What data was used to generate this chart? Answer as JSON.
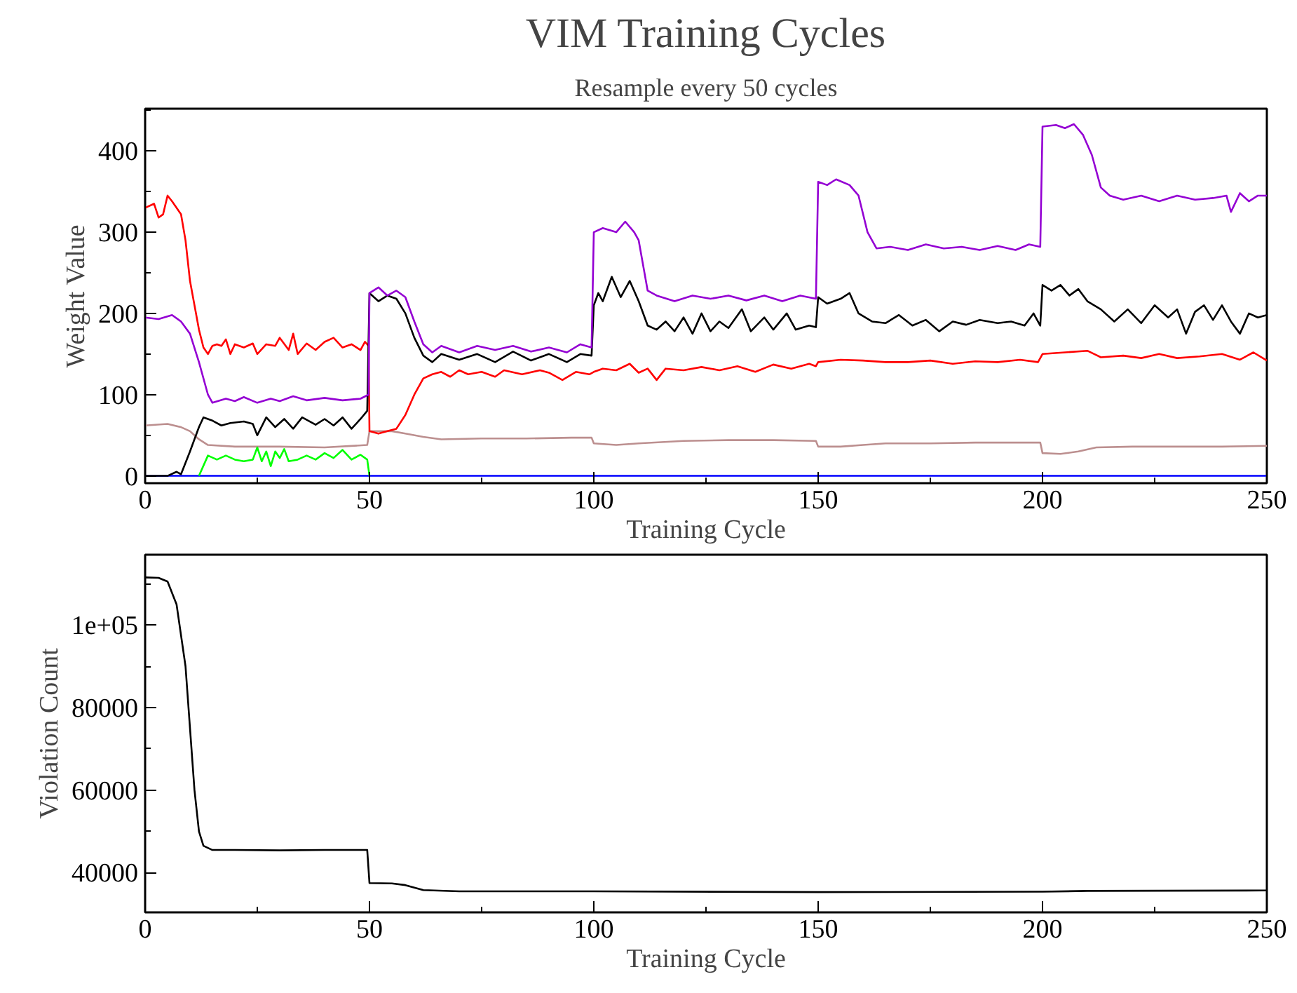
{
  "chart_data": [
    {
      "type": "line",
      "title": "VIM Training Cycles",
      "subtitle": "Resample every 50 cycles",
      "xlabel": "Training Cycle",
      "ylabel": "Weight Value",
      "xlim": [
        0,
        250
      ],
      "ylim": [
        -9,
        452
      ],
      "xticks": [
        0,
        {
          "value": 25,
          "label": null
        },
        50,
        {
          "value": 75,
          "label": null
        },
        100,
        {
          "value": 125,
          "label": null
        },
        150,
        {
          "value": 175,
          "label": null
        },
        200,
        {
          "value": 225,
          "label": null
        },
        250
      ],
      "yticks": [
        0,
        {
          "value": 50,
          "label": null
        },
        100,
        {
          "value": 150,
          "label": null
        },
        200,
        {
          "value": 250,
          "label": null
        },
        300,
        {
          "value": 350,
          "label": null
        },
        400,
        {
          "value": 450,
          "label": null
        }
      ],
      "series": [
        {
          "color": "#0000ff",
          "x": [
            0,
            250
          ],
          "values": [
            0,
            0
          ]
        },
        {
          "color": "#bc8f8f",
          "x": [
            0,
            5,
            8,
            10,
            12,
            14,
            20,
            30,
            40,
            49.5,
            50,
            55,
            58,
            62,
            66,
            75,
            85,
            95,
            99.5,
            100,
            105,
            110,
            120,
            130,
            140,
            149.5,
            150,
            155,
            160,
            165,
            175,
            185,
            199.5,
            200,
            204,
            208,
            212,
            220,
            230,
            240,
            250
          ],
          "values": [
            62,
            64,
            60,
            55,
            45,
            38,
            36,
            36,
            35,
            38,
            55,
            55,
            52,
            48,
            45,
            46,
            46,
            47,
            47,
            40,
            38,
            40,
            43,
            44,
            44,
            43,
            36,
            36,
            38,
            40,
            40,
            41,
            41,
            28,
            27,
            30,
            35,
            36,
            36,
            36,
            37
          ]
        },
        {
          "color": "#00ff00",
          "x": [
            12,
            14,
            16,
            18,
            20,
            22,
            24,
            25,
            26,
            27,
            28,
            29,
            30,
            31,
            32,
            34,
            36,
            38,
            40,
            42,
            44,
            46,
            48,
            49.5,
            50
          ],
          "values": [
            0,
            25,
            20,
            25,
            20,
            18,
            20,
            35,
            18,
            30,
            12,
            30,
            22,
            33,
            18,
            20,
            25,
            20,
            28,
            22,
            32,
            20,
            26,
            20,
            0
          ]
        },
        {
          "color": "#ff0000",
          "x": [
            0,
            2,
            3,
            4,
            5,
            6,
            7,
            8,
            9,
            10,
            11,
            12,
            13,
            14,
            15,
            16,
            17,
            18,
            19,
            20,
            22,
            24,
            25,
            27,
            29,
            30,
            32,
            33,
            34,
            36,
            38,
            40,
            42,
            44,
            46,
            48,
            49,
            49.8,
            50,
            52,
            54,
            56,
            58,
            60,
            62,
            64,
            66,
            68,
            70,
            72,
            75,
            78,
            80,
            84,
            88,
            90,
            93,
            96,
            99,
            100,
            102,
            105,
            108,
            110,
            112,
            114,
            116,
            120,
            124,
            128,
            132,
            136,
            140,
            144,
            148,
            149.5,
            150,
            155,
            160,
            165,
            170,
            175,
            180,
            185,
            190,
            195,
            199,
            200,
            205,
            210,
            213,
            218,
            222,
            226,
            230,
            235,
            240,
            244,
            247,
            250
          ],
          "values": [
            330,
            335,
            318,
            322,
            345,
            338,
            330,
            322,
            290,
            240,
            210,
            180,
            158,
            150,
            160,
            162,
            160,
            168,
            150,
            162,
            158,
            163,
            150,
            162,
            160,
            170,
            155,
            175,
            150,
            163,
            155,
            165,
            170,
            158,
            162,
            155,
            165,
            160,
            55,
            52,
            55,
            58,
            75,
            100,
            120,
            125,
            128,
            122,
            130,
            125,
            128,
            122,
            130,
            125,
            130,
            127,
            118,
            128,
            125,
            128,
            132,
            130,
            138,
            127,
            132,
            118,
            132,
            130,
            134,
            130,
            135,
            128,
            137,
            132,
            138,
            135,
            140,
            143,
            142,
            140,
            140,
            142,
            138,
            141,
            140,
            143,
            140,
            150,
            152,
            154,
            146,
            148,
            145,
            150,
            145,
            147,
            150,
            143,
            152,
            142
          ]
        },
        {
          "color": "#000000",
          "x": [
            0,
            5,
            7,
            8,
            10,
            12,
            13,
            15,
            17,
            19,
            22,
            24,
            25,
            27,
            29,
            31,
            33,
            35,
            38,
            40,
            42,
            44,
            46,
            48,
            49.5,
            50,
            52,
            54,
            56,
            58,
            60,
            62,
            64,
            66,
            70,
            74,
            78,
            82,
            86,
            90,
            94,
            97,
            99.5,
            100,
            101,
            102,
            104,
            106,
            108,
            110,
            112,
            114,
            116,
            118,
            120,
            122,
            124,
            126,
            128,
            130,
            133,
            135,
            138,
            140,
            143,
            145,
            148,
            149.5,
            150,
            152,
            155,
            157,
            159,
            162,
            165,
            168,
            171,
            174,
            177,
            180,
            183,
            186,
            190,
            193,
            196,
            198,
            199.5,
            200,
            202,
            204,
            206,
            208,
            210,
            213,
            216,
            219,
            222,
            225,
            228,
            230,
            232,
            234,
            236,
            238,
            240,
            242,
            244,
            246,
            248,
            250
          ],
          "values": [
            0,
            0,
            5,
            2,
            30,
            60,
            72,
            68,
            62,
            65,
            67,
            64,
            50,
            72,
            60,
            70,
            58,
            72,
            63,
            70,
            62,
            72,
            58,
            70,
            80,
            225,
            215,
            222,
            218,
            200,
            170,
            148,
            140,
            150,
            143,
            150,
            140,
            153,
            142,
            150,
            140,
            150,
            148,
            210,
            225,
            215,
            245,
            220,
            240,
            215,
            185,
            180,
            190,
            178,
            195,
            175,
            200,
            178,
            190,
            182,
            205,
            178,
            195,
            180,
            200,
            180,
            185,
            183,
            220,
            212,
            218,
            225,
            200,
            190,
            188,
            198,
            185,
            192,
            178,
            190,
            186,
            192,
            188,
            190,
            185,
            200,
            185,
            235,
            228,
            235,
            222,
            230,
            215,
            205,
            190,
            205,
            188,
            210,
            195,
            205,
            175,
            202,
            210,
            192,
            210,
            190,
            175,
            200,
            195,
            198
          ]
        },
        {
          "color": "#9400d3",
          "x": [
            0,
            3,
            6,
            8,
            10,
            12,
            14,
            15,
            18,
            20,
            22,
            25,
            28,
            30,
            33,
            36,
            40,
            44,
            48,
            49.8,
            50,
            52,
            54,
            56,
            58,
            60,
            62,
            64,
            66,
            70,
            74,
            78,
            82,
            86,
            90,
            94,
            97,
            99.5,
            100,
            102,
            105,
            107,
            109,
            110,
            112,
            114,
            118,
            122,
            126,
            130,
            134,
            138,
            142,
            146,
            149.5,
            150,
            152,
            154,
            157,
            159,
            161,
            163,
            166,
            170,
            174,
            178,
            182,
            186,
            190,
            194,
            197,
            199.5,
            200,
            203,
            205,
            207,
            209,
            211,
            213,
            215,
            218,
            222,
            226,
            230,
            234,
            238,
            241,
            242,
            244,
            246,
            248,
            250
          ],
          "values": [
            195,
            193,
            198,
            190,
            175,
            140,
            100,
            90,
            95,
            92,
            97,
            90,
            95,
            92,
            98,
            93,
            96,
            93,
            95,
            100,
            225,
            232,
            222,
            228,
            220,
            190,
            162,
            152,
            160,
            152,
            160,
            155,
            160,
            153,
            158,
            152,
            162,
            158,
            300,
            305,
            300,
            313,
            300,
            290,
            228,
            222,
            215,
            222,
            218,
            222,
            216,
            222,
            215,
            222,
            218,
            362,
            358,
            365,
            358,
            345,
            300,
            280,
            282,
            278,
            285,
            280,
            282,
            278,
            283,
            278,
            285,
            282,
            430,
            432,
            428,
            433,
            420,
            395,
            355,
            345,
            340,
            345,
            338,
            345,
            340,
            342,
            345,
            325,
            348,
            338,
            345,
            345
          ]
        }
      ]
    },
    {
      "type": "line",
      "xlabel": "Training Cycle",
      "ylabel": "Violation Count",
      "xlim": [
        0,
        250
      ],
      "ylim": [
        30400,
        117000
      ],
      "xticks": [
        0,
        {
          "value": 25,
          "label": null
        },
        50,
        {
          "value": 75,
          "label": null
        },
        100,
        {
          "value": 125,
          "label": null
        },
        150,
        {
          "value": 175,
          "label": null
        },
        200,
        {
          "value": 225,
          "label": null
        },
        250
      ],
      "yticks": [
        40000,
        {
          "value": 50000,
          "label": null
        },
        60000,
        {
          "value": 70000,
          "label": null
        },
        80000,
        {
          "value": 90000,
          "label": null
        },
        {
          "value": 100000,
          "label": "1e+05"
        },
        {
          "value": 110000,
          "label": null
        }
      ],
      "series": [
        {
          "color": "#000000",
          "x": [
            0,
            3,
            5,
            7,
            9,
            10,
            11,
            12,
            13,
            15,
            20,
            30,
            40,
            49.5,
            50,
            55,
            58,
            62,
            70,
            100,
            150,
            200,
            210,
            250
          ],
          "values": [
            111500,
            111400,
            110500,
            105000,
            90000,
            75000,
            60000,
            50000,
            46500,
            45500,
            45500,
            45400,
            45500,
            45500,
            37500,
            37400,
            37000,
            35800,
            35500,
            35500,
            35300,
            35400,
            35600,
            35700
          ]
        }
      ]
    }
  ]
}
